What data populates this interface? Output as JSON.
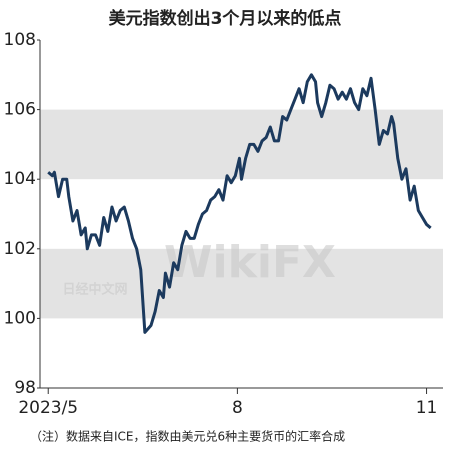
{
  "chart_data": {
    "type": "line",
    "title": "美元指数创出3个月以来的低点",
    "note": "（注）数据来自ICE，指数由美元兑6种主要货币的汇率合成",
    "watermark": [
      "日经中文网",
      "WikiFX"
    ],
    "x": [
      0,
      2,
      3,
      5,
      7,
      9,
      10,
      12,
      14,
      16,
      18,
      19,
      21,
      23,
      25,
      27,
      29,
      31,
      33,
      35,
      37,
      39,
      41,
      43,
      45,
      46,
      47,
      50,
      52,
      54,
      56,
      57,
      59,
      61,
      63,
      65,
      67,
      69,
      71,
      73,
      75,
      77,
      79,
      81,
      83,
      85,
      87,
      89,
      91,
      93,
      94,
      96,
      98,
      100,
      102,
      104,
      106,
      108,
      110,
      112,
      114,
      116,
      118,
      120,
      122,
      124,
      126,
      128,
      130,
      131,
      133,
      135,
      137,
      139,
      141,
      143,
      145,
      147,
      149,
      151,
      153,
      155,
      157,
      159,
      161,
      163,
      165,
      167,
      168,
      170,
      172,
      174,
      176,
      178,
      180,
      182,
      184,
      186
    ],
    "series": [
      {
        "color": "#1c3a5e",
        "values": [
          104.2,
          104.1,
          104.2,
          103.5,
          104.0,
          104.0,
          103.5,
          102.8,
          103.1,
          102.4,
          102.6,
          102.0,
          102.4,
          102.4,
          102.1,
          102.9,
          102.5,
          103.2,
          102.8,
          103.1,
          103.2,
          102.8,
          102.3,
          102.0,
          101.4,
          100.5,
          99.6,
          99.8,
          100.2,
          100.8,
          100.6,
          101.3,
          100.9,
          101.6,
          101.4,
          102.1,
          102.5,
          102.3,
          102.3,
          102.7,
          103.0,
          103.1,
          103.4,
          103.5,
          103.7,
          103.4,
          104.1,
          103.9,
          104.1,
          104.6,
          104.0,
          104.6,
          105.0,
          105.0,
          104.8,
          105.1,
          105.2,
          105.5,
          105.1,
          105.1,
          105.8,
          105.7,
          106.0,
          106.3,
          106.6,
          106.2,
          106.8,
          107.0,
          106.8,
          106.2,
          105.8,
          106.2,
          106.7,
          106.6,
          106.3,
          106.5,
          106.3,
          106.6,
          106.2,
          106.0,
          106.6,
          106.4,
          106.9,
          106.0,
          105.0,
          105.4,
          105.3,
          105.8,
          105.6,
          104.6,
          104.0,
          104.3,
          103.4,
          103.8,
          103.1,
          102.9,
          102.7,
          102.6
        ]
      }
    ],
    "xlim": [
      -4,
      192
    ],
    "xticks": [
      {
        "value": 0,
        "label": "2023/5"
      },
      {
        "value": 92,
        "label": "8"
      },
      {
        "value": 184,
        "label": "11"
      }
    ],
    "ylim": [
      98,
      108
    ],
    "yticks": [
      98,
      100,
      102,
      104,
      106,
      108
    ],
    "bands": [
      [
        100,
        102
      ],
      [
        104,
        106
      ]
    ],
    "band_color": "#e3e3e3"
  }
}
